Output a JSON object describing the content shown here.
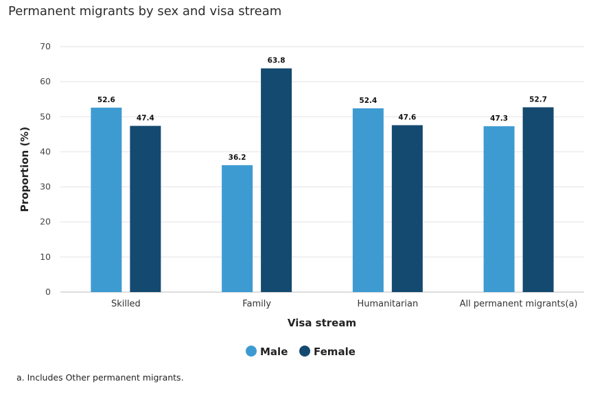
{
  "chart_data": {
    "type": "bar",
    "title": "Permanent migrants by sex and visa stream",
    "xlabel": "Visa stream",
    "ylabel": "Proportion (%)",
    "ylim": [
      0,
      70
    ],
    "yticks": [
      0,
      10,
      20,
      30,
      40,
      50,
      60,
      70
    ],
    "categories": [
      "Skilled",
      "Family",
      "Humanitarian",
      "All permanent migrants(a)"
    ],
    "series": [
      {
        "name": "Male",
        "color": "#3e9bd2",
        "values": [
          52.6,
          36.2,
          52.4,
          47.3
        ]
      },
      {
        "name": "Female",
        "color": "#154a70",
        "values": [
          47.4,
          63.8,
          47.6,
          52.7
        ]
      }
    ],
    "grid": true,
    "legend_position": "bottom-center"
  },
  "footnote": "a. Includes Other permanent migrants."
}
